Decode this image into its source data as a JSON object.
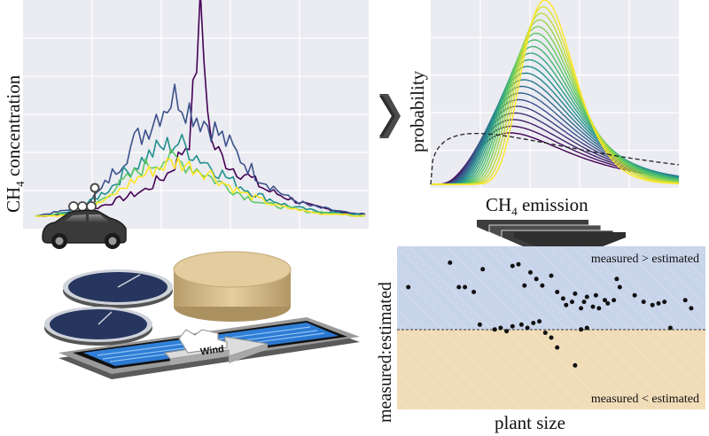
{
  "labels": {
    "concentration_axis": "CH",
    "concentration_axis_sub": "4",
    "concentration_axis_rest": " concentration",
    "probability_axis": "probability",
    "emission_axis": "CH",
    "emission_axis_sub": "4",
    "emission_axis_rest": " emission",
    "ratio_axis": "measured:estimated",
    "size_axis": "plant size",
    "over_label": "measured > estimated",
    "under_label": "measured < estimated",
    "wind_label": "Wind"
  },
  "colors": {
    "panel": "#ebebf2",
    "upper_band": "#c8d4ea",
    "lower_band": "#f1dcb8",
    "car_body": "#3a3a3a",
    "clarifier": "#26365f",
    "digester": "#e1c99c",
    "aeration_water": "#2f7fd6",
    "series_palette": [
      "#440154",
      "#3b528b",
      "#21918c",
      "#5ec962",
      "#fde725"
    ]
  },
  "icons": {
    "car": "car-icon",
    "sensor": "sensor-mast-icon",
    "arrow_right": "arrow-right-icon",
    "arrow_down": "chevron-down-stack-icon",
    "wind_arrow": "wind-arrow-icon"
  },
  "chart_data": [
    {
      "type": "line",
      "panel": "concentration",
      "xlabel": "",
      "ylabel": "CH4 concentration",
      "x": [
        0,
        1,
        2,
        3,
        4,
        5,
        6,
        7,
        8,
        9,
        10,
        11,
        12,
        13,
        14,
        15,
        16,
        17,
        18,
        19,
        20,
        21,
        22,
        23,
        24,
        25,
        26,
        27,
        28,
        29,
        30
      ],
      "series": [
        {
          "color": "#440154",
          "values": [
            1,
            1,
            2,
            2,
            3,
            4,
            6,
            8,
            10,
            12,
            14,
            18,
            22,
            30,
            40,
            100,
            38,
            30,
            25,
            22,
            18,
            14,
            12,
            10,
            8,
            6,
            5,
            4,
            3,
            2,
            2
          ]
        },
        {
          "color": "#3b528b",
          "values": [
            1,
            2,
            3,
            4,
            6,
            9,
            14,
            22,
            30,
            38,
            44,
            52,
            58,
            62,
            55,
            50,
            46,
            40,
            34,
            28,
            22,
            18,
            14,
            10,
            8,
            6,
            5,
            4,
            3,
            2,
            2
          ]
        },
        {
          "color": "#21918c",
          "values": [
            1,
            1,
            2,
            3,
            5,
            8,
            12,
            16,
            22,
            26,
            30,
            34,
            36,
            38,
            34,
            30,
            26,
            22,
            18,
            15,
            12,
            10,
            8,
            6,
            5,
            4,
            3,
            3,
            2,
            2,
            1
          ]
        },
        {
          "color": "#5ec962",
          "values": [
            1,
            1,
            2,
            2,
            4,
            6,
            9,
            14,
            18,
            22,
            26,
            28,
            30,
            28,
            26,
            24,
            20,
            17,
            14,
            11,
            9,
            7,
            6,
            5,
            4,
            3,
            3,
            2,
            2,
            1,
            1
          ]
        },
        {
          "color": "#fde725",
          "values": [
            1,
            1,
            1,
            2,
            3,
            5,
            8,
            11,
            15,
            19,
            22,
            25,
            27,
            28,
            26,
            24,
            22,
            18,
            15,
            12,
            10,
            8,
            6,
            5,
            4,
            3,
            2,
            2,
            2,
            1,
            1
          ]
        }
      ]
    },
    {
      "type": "line",
      "panel": "probability",
      "xlabel": "CH4 emission",
      "ylabel": "probability",
      "series_count": 21,
      "reference_line": "dashed"
    },
    {
      "type": "scatter",
      "panel": "ratio",
      "xlabel": "plant size",
      "ylabel": "measured:estimated",
      "ylim": [
        0,
        1
      ],
      "reference_y": 0.55,
      "points": [
        {
          "x": 0.02,
          "y": 0.75
        },
        {
          "x": 0.16,
          "y": 0.9
        },
        {
          "x": 0.19,
          "y": 0.75
        },
        {
          "x": 0.21,
          "y": 0.75
        },
        {
          "x": 0.24,
          "y": 0.72
        },
        {
          "x": 0.27,
          "y": 0.86
        },
        {
          "x": 0.37,
          "y": 0.88
        },
        {
          "x": 0.39,
          "y": 0.89
        },
        {
          "x": 0.41,
          "y": 0.76
        },
        {
          "x": 0.43,
          "y": 0.84
        },
        {
          "x": 0.45,
          "y": 0.8
        },
        {
          "x": 0.47,
          "y": 0.76
        },
        {
          "x": 0.5,
          "y": 0.82
        },
        {
          "x": 0.52,
          "y": 0.72
        },
        {
          "x": 0.54,
          "y": 0.68
        },
        {
          "x": 0.55,
          "y": 0.64
        },
        {
          "x": 0.57,
          "y": 0.66
        },
        {
          "x": 0.58,
          "y": 0.71
        },
        {
          "x": 0.6,
          "y": 0.62
        },
        {
          "x": 0.61,
          "y": 0.66
        },
        {
          "x": 0.62,
          "y": 0.69
        },
        {
          "x": 0.64,
          "y": 0.63
        },
        {
          "x": 0.65,
          "y": 0.7
        },
        {
          "x": 0.66,
          "y": 0.62
        },
        {
          "x": 0.68,
          "y": 0.67
        },
        {
          "x": 0.69,
          "y": 0.65
        },
        {
          "x": 0.71,
          "y": 0.67
        },
        {
          "x": 0.72,
          "y": 0.8
        },
        {
          "x": 0.73,
          "y": 0.75
        },
        {
          "x": 0.78,
          "y": 0.7
        },
        {
          "x": 0.81,
          "y": 0.66
        },
        {
          "x": 0.84,
          "y": 0.64
        },
        {
          "x": 0.86,
          "y": 0.65
        },
        {
          "x": 0.88,
          "y": 0.66
        },
        {
          "x": 0.95,
          "y": 0.67
        },
        {
          "x": 0.97,
          "y": 0.62
        },
        {
          "x": 0.26,
          "y": 0.52
        },
        {
          "x": 0.31,
          "y": 0.49
        },
        {
          "x": 0.33,
          "y": 0.5
        },
        {
          "x": 0.35,
          "y": 0.48
        },
        {
          "x": 0.37,
          "y": 0.51
        },
        {
          "x": 0.4,
          "y": 0.52
        },
        {
          "x": 0.42,
          "y": 0.5
        },
        {
          "x": 0.44,
          "y": 0.53
        },
        {
          "x": 0.46,
          "y": 0.54
        },
        {
          "x": 0.48,
          "y": 0.47
        },
        {
          "x": 0.5,
          "y": 0.44
        },
        {
          "x": 0.52,
          "y": 0.38
        },
        {
          "x": 0.58,
          "y": 0.27
        },
        {
          "x": 0.6,
          "y": 0.49
        },
        {
          "x": 0.62,
          "y": 0.5
        },
        {
          "x": 0.9,
          "y": 0.5
        }
      ]
    }
  ]
}
